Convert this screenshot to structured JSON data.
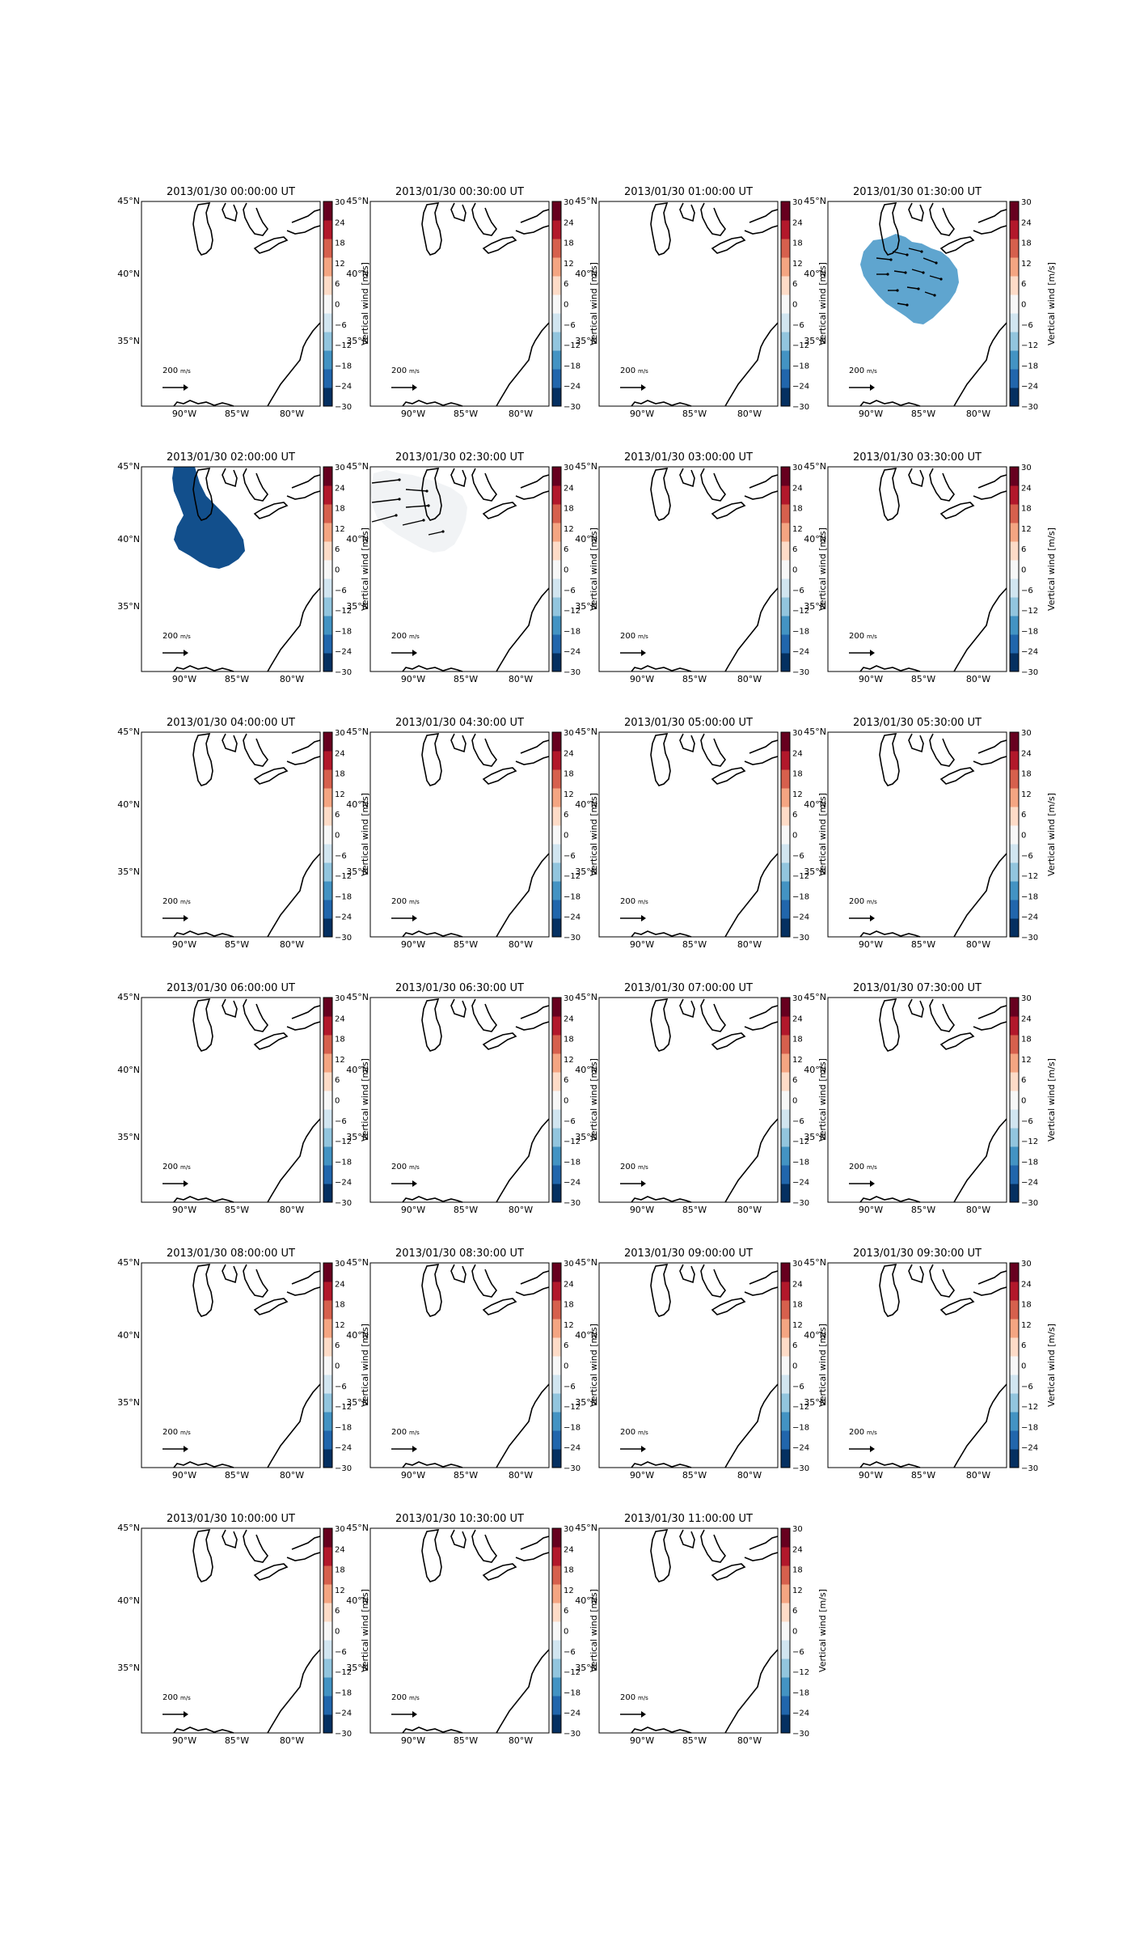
{
  "figure": {
    "colorbar_label": "Vertical wind [m/s]",
    "colorbar_ticks": [
      "30",
      "24",
      "18",
      "12",
      "6",
      "0",
      "−6",
      "−12",
      "−18",
      "−24",
      "−30"
    ],
    "lat_labels": [
      "45°N",
      "40°N",
      "35°N"
    ],
    "lon_labels": [
      "90°W",
      "85°W",
      "80°W"
    ],
    "scale_value": "200",
    "scale_unit": "m/s",
    "colorscale": [
      "#053061",
      "#2166ac",
      "#4393c3",
      "#92c5de",
      "#d1e5f0",
      "#f7f7f7",
      "#fddbc7",
      "#f4a582",
      "#d6604d",
      "#b2182b",
      "#67001f"
    ]
  },
  "panels": [
    {
      "title": "2013/01/30 00:00:00 UT",
      "fill": "none"
    },
    {
      "title": "2013/01/30 00:30:00 UT",
      "fill": "none"
    },
    {
      "title": "2013/01/30 01:00:00 UT",
      "fill": "none"
    },
    {
      "title": "2013/01/30 01:30:00 UT",
      "fill": "#5fa5cf"
    },
    {
      "title": "2013/01/30 02:00:00 UT",
      "fill": "#124f8c"
    },
    {
      "title": "2013/01/30 02:30:00 UT",
      "fill": "#f1f3f5"
    },
    {
      "title": "2013/01/30 03:00:00 UT",
      "fill": "none"
    },
    {
      "title": "2013/01/30 03:30:00 UT",
      "fill": "none"
    },
    {
      "title": "2013/01/30 04:00:00 UT",
      "fill": "none"
    },
    {
      "title": "2013/01/30 04:30:00 UT",
      "fill": "none"
    },
    {
      "title": "2013/01/30 05:00:00 UT",
      "fill": "none"
    },
    {
      "title": "2013/01/30 05:30:00 UT",
      "fill": "none"
    },
    {
      "title": "2013/01/30 06:00:00 UT",
      "fill": "none"
    },
    {
      "title": "2013/01/30 06:30:00 UT",
      "fill": "none"
    },
    {
      "title": "2013/01/30 07:00:00 UT",
      "fill": "none"
    },
    {
      "title": "2013/01/30 07:30:00 UT",
      "fill": "none"
    },
    {
      "title": "2013/01/30 08:00:00 UT",
      "fill": "none"
    },
    {
      "title": "2013/01/30 08:30:00 UT",
      "fill": "none"
    },
    {
      "title": "2013/01/30 09:00:00 UT",
      "fill": "none"
    },
    {
      "title": "2013/01/30 09:30:00 UT",
      "fill": "none"
    },
    {
      "title": "2013/01/30 10:00:00 UT",
      "fill": "none"
    },
    {
      "title": "2013/01/30 10:30:00 UT",
      "fill": "none"
    },
    {
      "title": "2013/01/30 11:00:00 UT",
      "fill": "none"
    }
  ]
}
